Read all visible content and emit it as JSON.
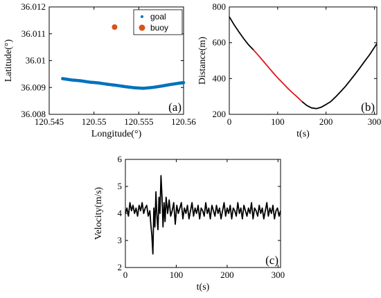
{
  "chart_data": [
    {
      "type": "scatter",
      "panel_label": "(a)",
      "xlabel": "Longitude(°)",
      "ylabel": "Latitude(°)",
      "xlim": [
        120.545,
        120.56
      ],
      "ylim": [
        36.008,
        36.012
      ],
      "x_ticks": [
        120.545,
        120.55,
        120.555,
        120.56
      ],
      "x_tick_labels": [
        "120.545",
        "120.55",
        "120.555",
        "120.56"
      ],
      "y_ticks": [
        36.008,
        36.009,
        36.01,
        36.011,
        36.012
      ],
      "y_tick_labels": [
        "36.008",
        "36.009",
        "36.01",
        "36.011",
        "36.012"
      ],
      "legend": {
        "position": "top-right",
        "entries": [
          "goal",
          "buoy"
        ]
      },
      "series": [
        {
          "name": "goal",
          "color": "#0072BD",
          "x": [
            120.5465,
            120.5475,
            120.5485,
            120.5495,
            120.5505,
            120.5515,
            120.5525,
            120.5535,
            120.5545,
            120.5555,
            120.5565,
            120.5575,
            120.5585,
            120.5595,
            120.56
          ],
          "y": [
            36.00933,
            36.00928,
            36.00925,
            36.0092,
            36.00917,
            36.00912,
            36.00908,
            36.00903,
            36.00899,
            36.00897,
            36.009,
            36.00905,
            36.00911,
            36.00916,
            36.00918
          ]
        },
        {
          "name": "buoy",
          "color": "#D95319",
          "x": [
            120.5523
          ],
          "y": [
            36.01125
          ]
        }
      ]
    },
    {
      "type": "line",
      "panel_label": "(b)",
      "xlabel": "t(s)",
      "ylabel": "Distance(m)",
      "xlim": [
        0,
        305
      ],
      "ylim": [
        200,
        800
      ],
      "x_ticks": [
        0,
        100,
        200,
        300
      ],
      "y_ticks": [
        200,
        400,
        600,
        800
      ],
      "series": [
        {
          "color": "#000000",
          "x": [
            0,
            10,
            20,
            30,
            40,
            50
          ],
          "y": [
            745,
            700,
            660,
            622,
            588,
            560
          ]
        },
        {
          "color": "#E0141E",
          "x": [
            50,
            60,
            70,
            80,
            90,
            100,
            110,
            120,
            130,
            140,
            150
          ],
          "y": [
            560,
            530,
            498,
            466,
            434,
            404,
            376,
            348,
            322,
            298,
            272
          ]
        },
        {
          "color": "#000000",
          "x": [
            150,
            160,
            170,
            180,
            190,
            200,
            210,
            220,
            230,
            240,
            250,
            260,
            270,
            280,
            290,
            305
          ],
          "y": [
            272,
            250,
            236,
            232,
            240,
            255,
            272,
            298,
            326,
            356,
            390,
            424,
            460,
            497,
            533,
            595
          ]
        }
      ]
    },
    {
      "type": "line",
      "panel_label": "(c)",
      "xlabel": "t(s)",
      "ylabel": "Velocity(m/s)",
      "xlim": [
        0,
        305
      ],
      "ylim": [
        2,
        6
      ],
      "x_ticks": [
        0,
        100,
        200,
        300
      ],
      "y_ticks": [
        2,
        3,
        4,
        5,
        6
      ],
      "series": [
        {
          "color": "#000000",
          "x": [
            0,
            3,
            6,
            9,
            12,
            15,
            18,
            21,
            24,
            27,
            30,
            33,
            36,
            39,
            42,
            45,
            48,
            50,
            52,
            54,
            56,
            58,
            60,
            62,
            64,
            66,
            68,
            70,
            72,
            74,
            76,
            78,
            80,
            83,
            86,
            89,
            92,
            95,
            98,
            101,
            104,
            107,
            110,
            113,
            116,
            119,
            122,
            125,
            128,
            131,
            134,
            137,
            140,
            143,
            146,
            149,
            152,
            155,
            158,
            161,
            164,
            167,
            170,
            173,
            176,
            179,
            182,
            185,
            188,
            191,
            194,
            197,
            200,
            203,
            206,
            209,
            212,
            215,
            218,
            221,
            224,
            227,
            230,
            233,
            236,
            239,
            242,
            245,
            248,
            251,
            254,
            257,
            260,
            263,
            266,
            269,
            272,
            275,
            278,
            281,
            284,
            287,
            290,
            293,
            296,
            299,
            302,
            305
          ],
          "y": [
            4.0,
            4.2,
            3.9,
            4.4,
            4.1,
            4.3,
            4.0,
            4.2,
            3.9,
            4.3,
            4.1,
            4.4,
            4.0,
            4.2,
            4.3,
            3.9,
            4.1,
            3.6,
            3.2,
            2.5,
            4.2,
            3.5,
            4.8,
            3.9,
            3.4,
            4.6,
            4.0,
            5.4,
            4.6,
            3.5,
            4.4,
            3.7,
            4.6,
            4.0,
            4.5,
            3.9,
            4.1,
            4.4,
            3.6,
            4.3,
            4.0,
            4.2,
            4.4,
            3.8,
            4.2,
            4.0,
            4.3,
            3.8,
            4.1,
            4.4,
            3.9,
            4.2,
            4.0,
            4.3,
            3.8,
            4.2,
            4.1,
            3.9,
            4.4,
            4.0,
            4.2,
            3.8,
            4.3,
            4.1,
            3.9,
            4.3,
            4.0,
            4.2,
            3.8,
            4.1,
            4.4,
            3.9,
            4.2,
            4.0,
            4.3,
            3.8,
            4.2,
            4.1,
            3.9,
            4.4,
            4.0,
            4.2,
            3.8,
            4.3,
            4.1,
            3.9,
            4.2,
            4.0,
            4.4,
            3.8,
            4.2,
            4.1,
            3.9,
            4.3,
            4.0,
            4.2,
            3.8,
            4.1,
            4.4,
            3.9,
            4.2,
            4.0,
            4.3,
            3.8,
            4.1,
            4.2,
            3.9,
            4.1
          ]
        }
      ]
    }
  ]
}
